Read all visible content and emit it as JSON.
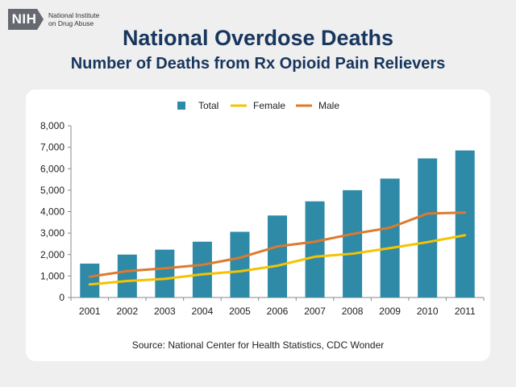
{
  "logo": {
    "mark": "NIH",
    "org": "National Institute\non Drug Abuse"
  },
  "header": {
    "title": "National Overdose Deaths",
    "subtitle": "Number of Deaths from Rx Opioid Pain Relievers"
  },
  "source": "Source: National Center for Health Statistics, CDC Wonder",
  "chart_data": {
    "type": "bar",
    "title": "Number of Deaths from Rx Opioid Pain Relievers",
    "categories": [
      "2001",
      "2002",
      "2003",
      "2004",
      "2005",
      "2006",
      "2007",
      "2008",
      "2009",
      "2010",
      "2011"
    ],
    "series": [
      {
        "name": "Total",
        "type": "bar",
        "color": "#2f8aa8",
        "values": [
          1580,
          2000,
          2230,
          2600,
          3060,
          3820,
          4480,
          5000,
          5540,
          6480,
          6850
        ]
      },
      {
        "name": "Female",
        "type": "line",
        "color": "#f5c300",
        "values": [
          610,
          770,
          870,
          1080,
          1220,
          1480,
          1900,
          2040,
          2300,
          2580,
          2900
        ]
      },
      {
        "name": "Male",
        "type": "line",
        "color": "#dd7a2d",
        "values": [
          970,
          1230,
          1360,
          1520,
          1850,
          2380,
          2600,
          2960,
          3250,
          3910,
          3960
        ]
      }
    ],
    "xlabel": "",
    "ylabel": "",
    "ylim": [
      0,
      8000
    ],
    "yticks": [
      0,
      1000,
      2000,
      3000,
      4000,
      5000,
      6000,
      7000,
      8000
    ],
    "ytick_labels": [
      "0",
      "1,000",
      "2,000",
      "3,000",
      "4,000",
      "5,000",
      "6,000",
      "7,000",
      "8,000"
    ],
    "legend_position": "top-center",
    "grid": false
  }
}
